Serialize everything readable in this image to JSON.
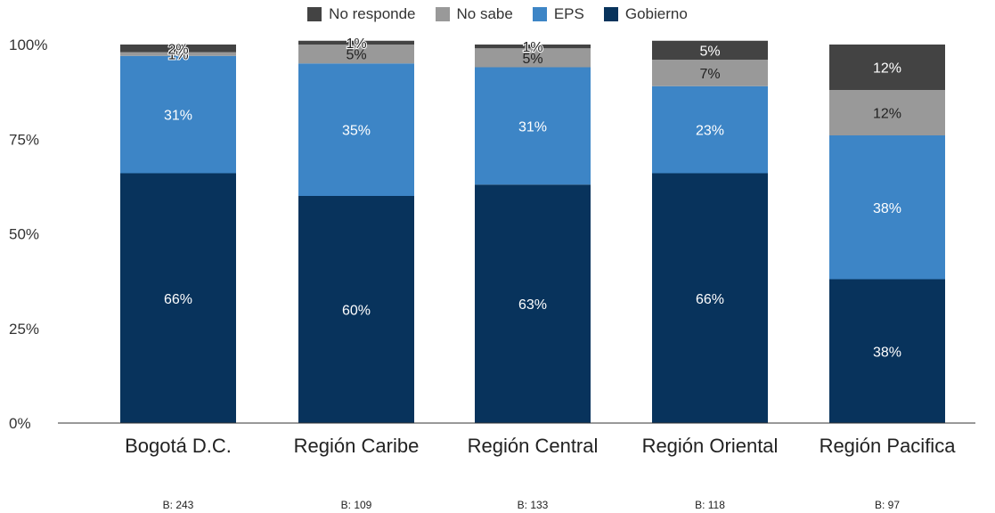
{
  "chart_data": {
    "type": "bar",
    "stacked": true,
    "categories": [
      "Bogotá D.C.",
      "Región Caribe",
      "Región Central",
      "Región Oriental",
      "Región Pacifica"
    ],
    "series": [
      {
        "name": "Gobierno",
        "values": [
          66,
          60,
          63,
          66,
          38
        ],
        "labels": [
          "66%",
          "60%",
          "63%",
          "66%",
          "38%"
        ],
        "color": "#08335c"
      },
      {
        "name": "EPS",
        "values": [
          31,
          35,
          31,
          23,
          38
        ],
        "labels": [
          "31%",
          "35%",
          "31%",
          "23%",
          "38%"
        ],
        "color": "#3d85c6"
      },
      {
        "name": "No sabe",
        "values": [
          1,
          5,
          5,
          7,
          12
        ],
        "labels": [
          "1%",
          "5%",
          "5%",
          "7%",
          "12%"
        ],
        "color": "#999999"
      },
      {
        "name": "No responde",
        "values": [
          2,
          1,
          1,
          5,
          12
        ],
        "labels": [
          "2%",
          "1%",
          "1%",
          "5%",
          "12%"
        ],
        "color": "#434343"
      }
    ],
    "legend_order": [
      "No responde",
      "No sabe",
      "EPS",
      "Gobierno"
    ],
    "legend_position": "top-center",
    "yticks": [
      "0%",
      "25%",
      "50%",
      "75%",
      "100%"
    ],
    "ylim": [
      0,
      100
    ],
    "base_labels": [
      "B: 243",
      "B: 109",
      "B: 133",
      "B: 118",
      "B: 97"
    ],
    "grid": false
  }
}
